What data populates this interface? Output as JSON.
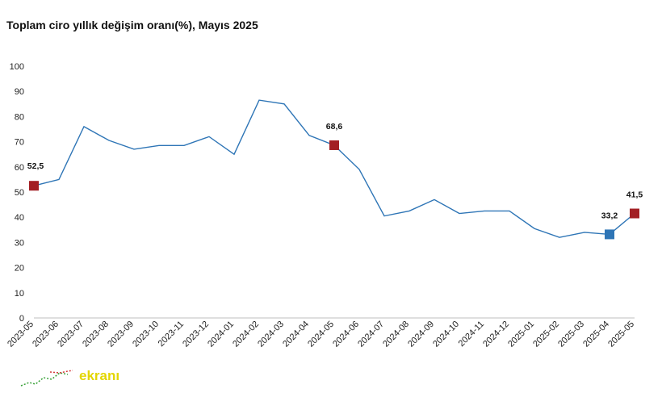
{
  "title": "Toplam ciro yıllık değişim oranı(%), Mayıs 2025",
  "watermark": {
    "text": "ekranı"
  },
  "chart_data": {
    "type": "line",
    "title": "Toplam ciro yıllık değişim oranı(%), Mayıs 2025",
    "xlabel": "",
    "ylabel": "",
    "ylim": [
      0,
      100
    ],
    "yticks": [
      0,
      10,
      20,
      30,
      40,
      50,
      60,
      70,
      80,
      90,
      100
    ],
    "grid": false,
    "legend": "none",
    "categories": [
      "2023-05",
      "2023-06",
      "2023-07",
      "2023-08",
      "2023-09",
      "2023-10",
      "2023-11",
      "2023-12",
      "2024-01",
      "2024-02",
      "2024-03",
      "2024-04",
      "2024-05",
      "2024-06",
      "2024-07",
      "2024-08",
      "2024-09",
      "2024-10",
      "2024-11",
      "2024-12",
      "2025-01",
      "2025-02",
      "2025-03",
      "2025-04",
      "2025-05"
    ],
    "series": [
      {
        "values": [
          52.5,
          55,
          76,
          70.5,
          67,
          68.5,
          68.5,
          72,
          65,
          86.5,
          85,
          72.5,
          68.6,
          59,
          40.5,
          42.5,
          47,
          41.5,
          42.5,
          42.5,
          35.5,
          32,
          34,
          33.2,
          41.5
        ],
        "color": "#2e75b6"
      }
    ],
    "highlighted_points": [
      {
        "index": 0,
        "label": "52,5",
        "color": "#a31f24",
        "label_position": "above"
      },
      {
        "index": 12,
        "label": "68,6",
        "color": "#a31f24",
        "label_position": "above"
      },
      {
        "index": 23,
        "label": "33,2",
        "color": "#2e75b6",
        "label_position": "above-left"
      },
      {
        "index": 24,
        "label": "41,5",
        "color": "#a31f24",
        "label_position": "above"
      }
    ]
  }
}
